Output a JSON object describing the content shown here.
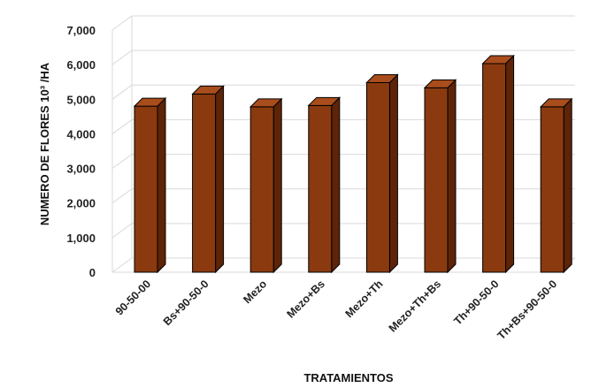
{
  "chart_data": {
    "type": "bar",
    "categories": [
      "90-50-00",
      "Bs+90-50-0",
      "Mezo",
      "Mezo+Bs",
      "Mezo+Th",
      "Mezo+Th+Bs",
      "Th+90-50-0",
      "Th+Bs+90-50-0"
    ],
    "values": [
      4800,
      5150,
      4780,
      4820,
      5480,
      5330,
      6030,
      4780
    ],
    "xlabel": "TRATAMIENTOS",
    "ylabel": "NUMERO DE FLORES 10³ /HA",
    "ylim": [
      0,
      7000
    ],
    "yticks": [
      {
        "value": 0,
        "label": "0"
      },
      {
        "value": 1000,
        "label": "1,000"
      },
      {
        "value": 2000,
        "label": "2,000"
      },
      {
        "value": 3000,
        "label": "3,000"
      },
      {
        "value": 4000,
        "label": "4,000"
      },
      {
        "value": 5000,
        "label": "5,000"
      },
      {
        "value": 6000,
        "label": "6,000"
      },
      {
        "value": 7000,
        "label": "7,000"
      }
    ],
    "grid": true,
    "bar_color": "#8B3A0F",
    "bar_side_color": "#5E2407",
    "bar_top_color": "#A94D1C"
  }
}
